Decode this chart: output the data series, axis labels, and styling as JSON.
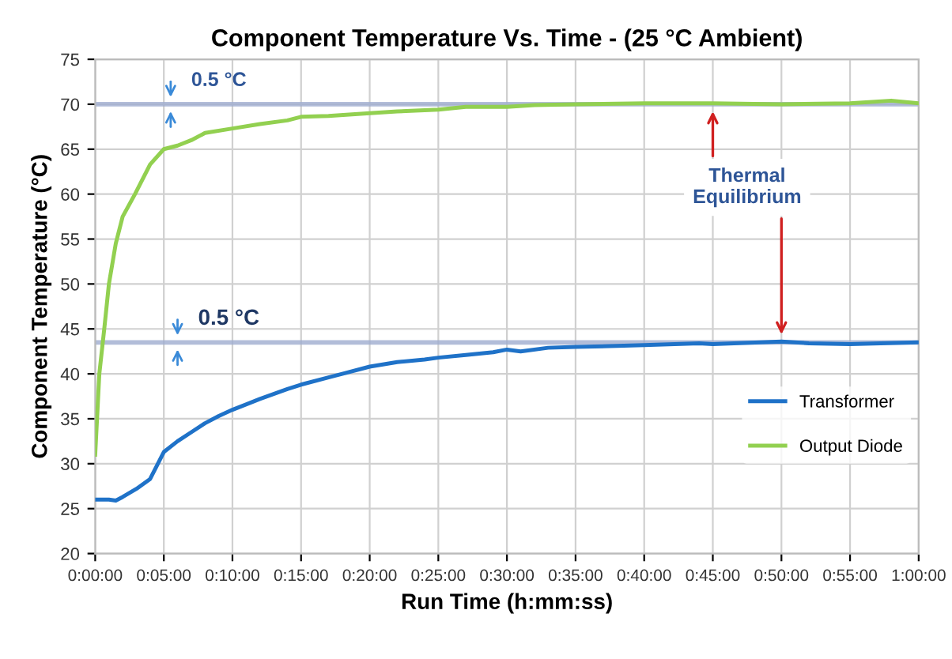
{
  "chart_data": {
    "type": "line",
    "title": "Component Temperature Vs. Time - (25 °C Ambient)",
    "xlabel": "Run Time (h:mm:ss)",
    "ylabel": "Component Temperature (°C)",
    "series": [
      {
        "name": "Transformer",
        "color": "#1f72c8",
        "x": [
          0,
          1,
          1.5,
          2,
          3,
          4,
          5,
          6,
          7,
          8,
          9,
          10,
          12,
          14,
          15,
          17,
          18,
          20,
          22,
          24,
          25,
          27,
          29,
          30,
          31,
          33,
          35,
          38,
          40,
          44,
          45,
          50,
          52,
          55,
          60
        ],
        "values": [
          26,
          26,
          25.9,
          26.3,
          27.2,
          28.3,
          31.3,
          32.5,
          33.5,
          34.5,
          35.3,
          36,
          37.2,
          38.3,
          38.8,
          39.6,
          40,
          40.8,
          41.3,
          41.6,
          41.8,
          42.1,
          42.4,
          42.7,
          42.5,
          42.9,
          43,
          43.1,
          43.2,
          43.4,
          43.3,
          43.6,
          43.4,
          43.3,
          43.5
        ]
      },
      {
        "name": "Output Diode",
        "color": "#92d050",
        "x": [
          0,
          0.3,
          0.66,
          1,
          1.5,
          2,
          2.9,
          4,
          5,
          6,
          7,
          8,
          10,
          12,
          14,
          15,
          17,
          20,
          22,
          25,
          27,
          30,
          32,
          35,
          40,
          45,
          50,
          55,
          58,
          60
        ],
        "values": [
          31,
          40,
          45,
          50,
          54.5,
          57.5,
          60,
          63.3,
          65,
          65.4,
          66,
          66.8,
          67.3,
          67.8,
          68.2,
          68.6,
          68.7,
          69,
          69.2,
          69.4,
          69.7,
          69.7,
          69.9,
          70,
          70.1,
          70.1,
          70,
          70.1,
          70.4,
          70.1
        ]
      }
    ],
    "xlim": [
      0,
      60
    ],
    "xticks": [
      {
        "value": 0,
        "label": "0:00:00"
      },
      {
        "value": 5,
        "label": "0:05:00"
      },
      {
        "value": 10,
        "label": "0:10:00"
      },
      {
        "value": 15,
        "label": "0:15:00"
      },
      {
        "value": 20,
        "label": "0:20:00"
      },
      {
        "value": 25,
        "label": "0:25:00"
      },
      {
        "value": 30,
        "label": "0:30:00"
      },
      {
        "value": 35,
        "label": "0:35:00"
      },
      {
        "value": 40,
        "label": "0:40:00"
      },
      {
        "value": 45,
        "label": "0:45:00"
      },
      {
        "value": 50,
        "label": "0:50:00"
      },
      {
        "value": 55,
        "label": "0:55:00"
      },
      {
        "value": 60,
        "label": "1:00:00"
      }
    ],
    "ylim": [
      20,
      75
    ],
    "yticks": [
      20,
      25,
      30,
      35,
      40,
      45,
      50,
      55,
      60,
      65,
      70,
      75
    ],
    "bands": [
      {
        "axis": "y",
        "from": 69.75,
        "to": 70.25,
        "color": "#9fadd0"
      },
      {
        "axis": "y",
        "from": 43.25,
        "to": 43.75,
        "color": "#9fadd0"
      }
    ],
    "annotations": [
      {
        "text": "0.5 °C",
        "x": 5.5,
        "y": 70
      },
      {
        "text": "0.5 °C",
        "x": 6,
        "y": 43.5
      },
      {
        "text": "Thermal Equilibrium",
        "x": 45,
        "y": 70
      }
    ],
    "grid": true,
    "legend": "right",
    "line_style": "solid",
    "marker": "none"
  }
}
